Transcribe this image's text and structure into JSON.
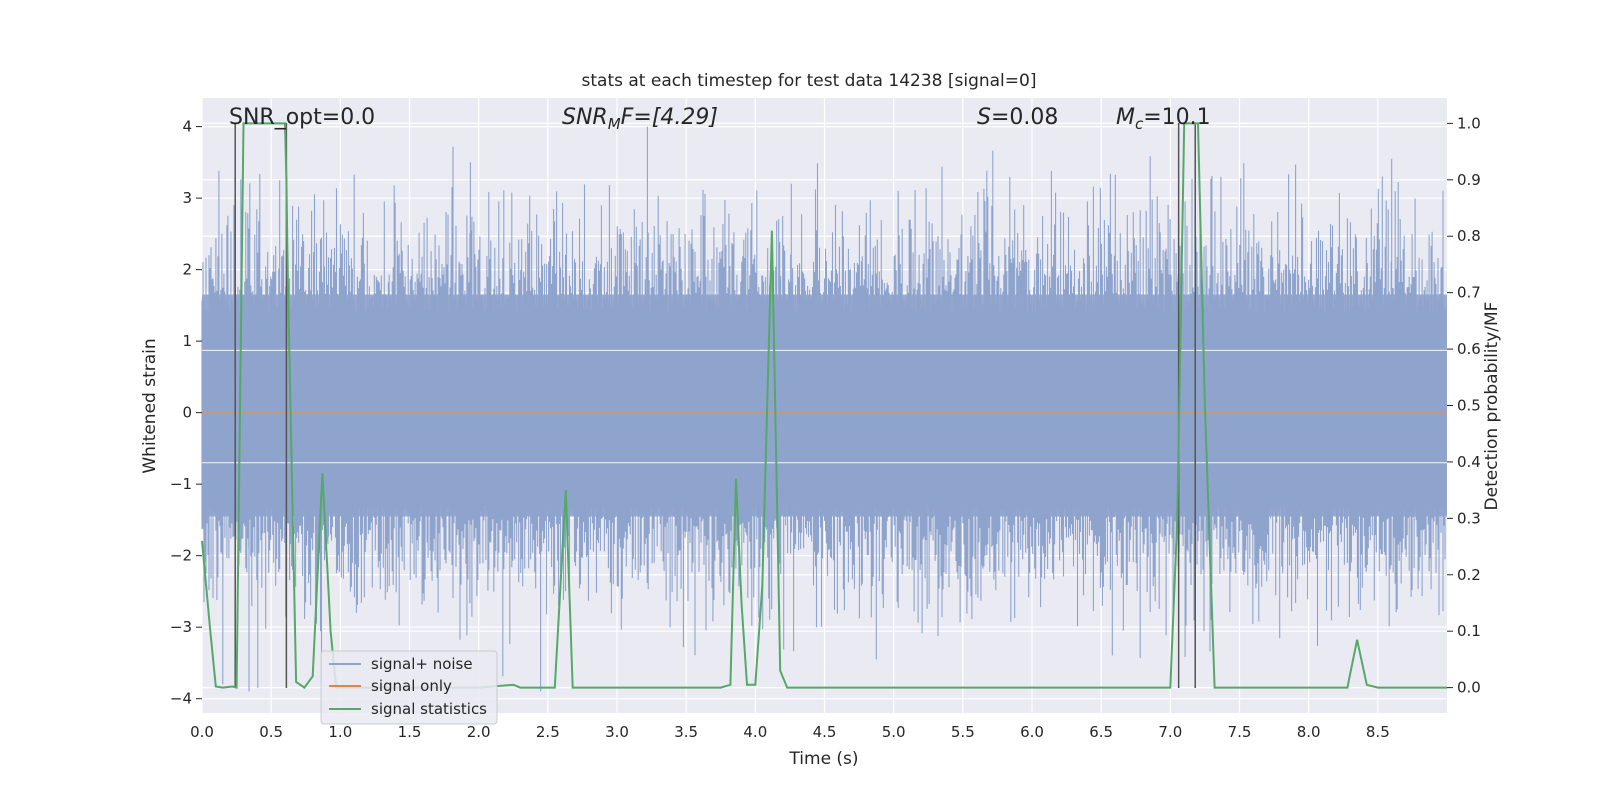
{
  "chart_data": {
    "type": "line",
    "title": "stats at each timestep for test data 14238 [signal=0]",
    "xlabel": "Time (s)",
    "ylabel": "Whitened strain",
    "ylabel_right": "Detection probability/MF",
    "xlim": [
      0,
      9
    ],
    "ylim": [
      -4.2,
      4.4
    ],
    "ylim_right": [
      -0.045,
      1.045
    ],
    "xticks": [
      "0.0",
      "0.5",
      "1.0",
      "1.5",
      "2.0",
      "2.5",
      "3.0",
      "3.5",
      "4.0",
      "4.5",
      "5.0",
      "5.5",
      "6.0",
      "6.5",
      "7.0",
      "7.5",
      "8.0",
      "8.5"
    ],
    "yticks": [
      "−4",
      "−3",
      "−2",
      "−1",
      "0",
      "1",
      "2",
      "3",
      "4"
    ],
    "yticks_right": [
      "0.0",
      "0.1",
      "0.2",
      "0.3",
      "0.4",
      "0.5",
      "0.6",
      "0.7",
      "0.8",
      "0.9",
      "1.0"
    ],
    "grid": true,
    "legend_placement": "lower-left",
    "annotations": {
      "snr_opt": "SNR_opt=0.0",
      "snr_mf_name": "SNR",
      "snr_mf_sub": "M",
      "snr_mf_rest": "F=[4.29]",
      "s_name": "S",
      "s_rest": "=0.08",
      "mc_name": "M",
      "mc_sub": "c",
      "mc_rest": "=10.1"
    },
    "vertical_lines": [
      0.24,
      0.61,
      7.06,
      7.18
    ],
    "series": [
      {
        "name": "signal+ noise",
        "color": "#8fa4cd",
        "amplitude": 1.0,
        "peaks": [
          [
            0.88,
            2.97
          ],
          [
            0.91,
            -1.84
          ],
          [
            1.1,
            3.33
          ],
          [
            1.94,
            3.5
          ],
          [
            3.22,
            4.0
          ],
          [
            3.48,
            -3.28
          ],
          [
            4.26,
            3.2
          ],
          [
            5.48,
            -2.93
          ],
          [
            6.14,
            3.38
          ],
          [
            8.6,
            3.55
          ],
          [
            0.15,
            -3.8
          ],
          [
            0.34,
            -3.9
          ]
        ]
      },
      {
        "name": "signal only",
        "color": "#dd8452",
        "values": [
          0
        ]
      },
      {
        "name": "signal statistics",
        "color": "#55a868",
        "x": [
          0.0,
          0.06,
          0.1,
          0.15,
          0.22,
          0.25,
          0.3,
          0.35,
          0.4,
          0.5,
          0.55,
          0.6,
          0.61,
          0.62,
          0.68,
          0.74,
          0.8,
          0.87,
          0.93,
          0.97,
          1.03,
          1.5,
          2.0,
          2.25,
          2.3,
          2.4,
          2.55,
          2.63,
          2.68,
          2.73,
          2.8,
          3.0,
          3.5,
          3.75,
          3.82,
          3.86,
          3.9,
          3.94,
          4.0,
          4.05,
          4.12,
          4.18,
          4.23,
          4.3,
          5.0,
          6.0,
          6.7,
          7.0,
          7.05,
          7.1,
          7.15,
          7.2,
          7.25,
          7.32,
          7.38,
          7.5,
          8.0,
          8.28,
          8.35,
          8.42,
          8.5,
          9.0
        ],
        "values": [
          0.26,
          0.1,
          0.002,
          0.0,
          0.002,
          0.0,
          1.0,
          1.0,
          1.0,
          1.0,
          1.0,
          1.0,
          0.9,
          0.73,
          0.01,
          0.0,
          0.02,
          0.38,
          0.1,
          0.0,
          0.0,
          0.0,
          0.0,
          0.005,
          0.0,
          0.0,
          0.0,
          0.35,
          0.0,
          0.0,
          0.0,
          0.0,
          0.0,
          0.0,
          0.005,
          0.37,
          0.15,
          0.005,
          0.005,
          0.18,
          0.81,
          0.03,
          0.0,
          0.0,
          0.0,
          0.0,
          0.0,
          0.0,
          0.3,
          1.0,
          1.0,
          1.0,
          0.5,
          0.0,
          0.0,
          0.0,
          0.0,
          0.0,
          0.085,
          0.005,
          0.0,
          0.0
        ]
      }
    ]
  }
}
